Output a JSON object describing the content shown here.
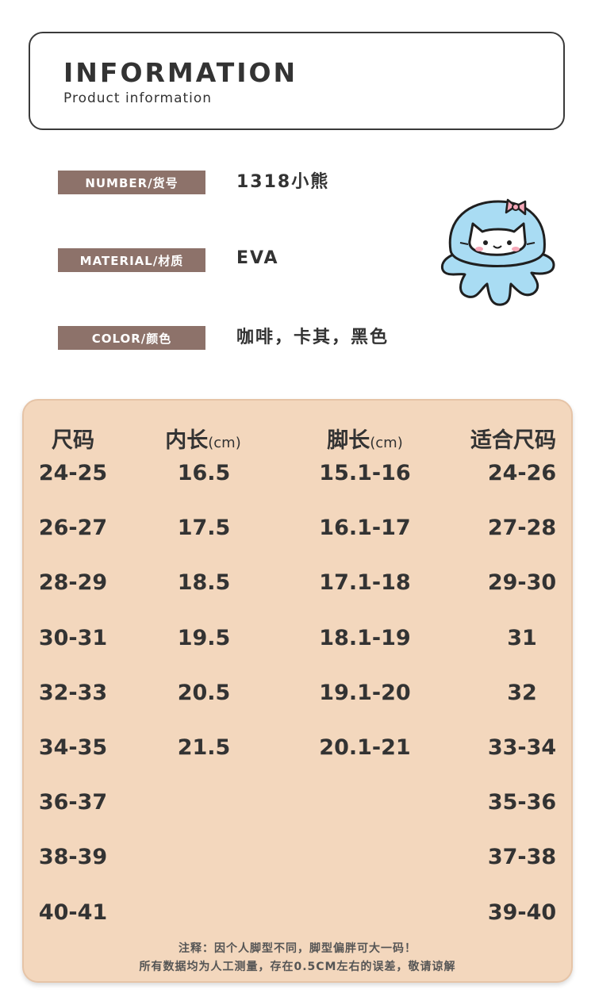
{
  "header": {
    "title": "INFORMATION",
    "subtitle": "Product information"
  },
  "specs": [
    {
      "label": "NUMBER/货号",
      "value": "1318小熊"
    },
    {
      "label": "MATERIAL/材质",
      "value": "EVA"
    },
    {
      "label": "COLOR/颜色",
      "value": "咖啡，卡其，黑色"
    }
  ],
  "size_table": {
    "columns": [
      {
        "label": "尺码",
        "unit": ""
      },
      {
        "label": "内长",
        "unit": "(cm)"
      },
      {
        "label": "脚长",
        "unit": "(cm)"
      },
      {
        "label": "适合尺码",
        "unit": ""
      }
    ],
    "rows": [
      [
        "24-25",
        "16.5",
        "15.1-16",
        "24-26"
      ],
      [
        "26-27",
        "17.5",
        "16.1-17",
        "27-28"
      ],
      [
        "28-29",
        "18.5",
        "17.1-18",
        "29-30"
      ],
      [
        "30-31",
        "19.5",
        "18.1-19",
        "31"
      ],
      [
        "32-33",
        "20.5",
        "19.1-20",
        "32"
      ],
      [
        "34-35",
        "21.5",
        "20.1-21",
        "33-34"
      ],
      [
        "36-37",
        "",
        "",
        "35-36"
      ],
      [
        "38-39",
        "",
        "",
        "37-38"
      ],
      [
        "40-41",
        "",
        "",
        "39-40"
      ]
    ],
    "note_line1": "注释：因个人脚型不同，脚型偏胖可大一码！",
    "note_line2": "所有数据均为人工测量，存在0.5CM左右的误差，敬请谅解"
  },
  "colors": {
    "label_bg": "#8d726a",
    "table_bg": "#f3d7bd",
    "mascot_blue": "#a9dcf3"
  },
  "icons": {
    "mascot": "octopus-cat-mascot-icon"
  }
}
